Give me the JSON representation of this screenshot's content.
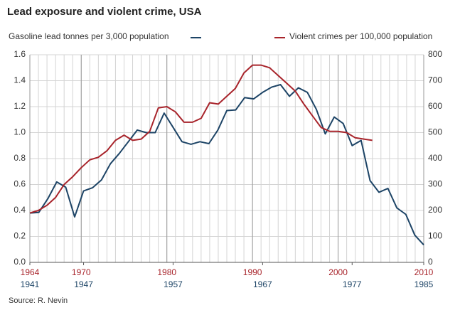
{
  "chart_data": {
    "type": "line",
    "title": "Lead exposure and violent crime, USA",
    "source": "Source: R. Nevin",
    "xlim": [
      1964,
      2010
    ],
    "xticks": [
      1964,
      1970,
      1980,
      1990,
      2000,
      2010
    ],
    "xminorticks": [
      1964,
      1965,
      1966,
      1967,
      1968,
      1969,
      1970,
      1971,
      1972,
      1973,
      1974,
      1975,
      1976,
      1977,
      1978,
      1979,
      1980,
      1981,
      1982,
      1983,
      1984,
      1985,
      1986,
      1987,
      1988,
      1989,
      1990,
      1991,
      1992,
      1993,
      1994,
      1995,
      1996,
      1997,
      1998,
      1999,
      2000,
      2001,
      2002,
      2003,
      2004,
      2005,
      2006,
      2007,
      2008,
      2009,
      2010
    ],
    "x2lim": [
      1941,
      1985
    ],
    "x2ticks": [
      1941,
      1947,
      1957,
      1967,
      1977,
      1985
    ],
    "ylim": [
      0,
      1.6
    ],
    "yticks": [
      {
        "value": 0,
        "label": "0.0"
      },
      0.2,
      0.4,
      0.6,
      0.8,
      {
        "value": 1,
        "label": "1.0"
      },
      1.2,
      1.4,
      1.6
    ],
    "y2lim": [
      0,
      800
    ],
    "y2ticks": [
      0,
      100,
      200,
      300,
      400,
      500,
      600,
      700,
      800
    ],
    "grid": true,
    "series": [
      {
        "name": "Gasoline lead tonnes per 3,000 population",
        "color": "#1d4466",
        "axis": "y",
        "xaxis": "x2",
        "x": [
          1941,
          1942,
          1943,
          1944,
          1945,
          1946,
          1947,
          1948,
          1949,
          1950,
          1951,
          1952,
          1953,
          1954,
          1955,
          1956,
          1957,
          1958,
          1959,
          1960,
          1961,
          1962,
          1963,
          1964,
          1965,
          1966,
          1967,
          1968,
          1969,
          1970,
          1971,
          1972,
          1973,
          1974,
          1975,
          1976,
          1977,
          1978,
          1979,
          1980,
          1981,
          1982,
          1983,
          1984,
          1985
        ],
        "values": [
          0.38,
          0.385,
          0.49,
          0.62,
          0.58,
          0.35,
          0.55,
          0.575,
          0.635,
          0.76,
          0.84,
          0.93,
          1.02,
          1.0,
          1.0,
          1.15,
          1.04,
          0.93,
          0.91,
          0.93,
          0.915,
          1.02,
          1.17,
          1.175,
          1.27,
          1.26,
          1.31,
          1.35,
          1.37,
          1.28,
          1.345,
          1.31,
          1.18,
          0.99,
          1.12,
          1.07,
          0.9,
          0.94,
          0.63,
          0.54,
          0.57,
          0.42,
          0.37,
          0.21,
          0.135
        ]
      },
      {
        "name": "Violent crimes per 100,000 population",
        "color": "#a8242b",
        "axis": "y2",
        "xaxis": "x",
        "x": [
          1964,
          1965,
          1966,
          1967,
          1968,
          1969,
          1970,
          1971,
          1972,
          1973,
          1974,
          1975,
          1976,
          1977,
          1978,
          1979,
          1980,
          1981,
          1982,
          1983,
          1984,
          1985,
          1986,
          1987,
          1988,
          1989,
          1990,
          1991,
          1992,
          1993,
          1994,
          1995,
          1996,
          1997,
          1998,
          1999,
          2000,
          2001,
          2002,
          2003,
          2004
        ],
        "values": [
          190,
          200,
          220,
          250,
          300,
          330,
          365,
          395,
          405,
          430,
          470,
          490,
          470,
          475,
          505,
          595,
          600,
          580,
          540,
          540,
          555,
          615,
          610,
          640,
          670,
          730,
          760,
          760,
          750,
          720,
          690,
          660,
          610,
          565,
          520,
          505,
          505,
          500,
          480,
          475,
          470
        ]
      }
    ]
  }
}
